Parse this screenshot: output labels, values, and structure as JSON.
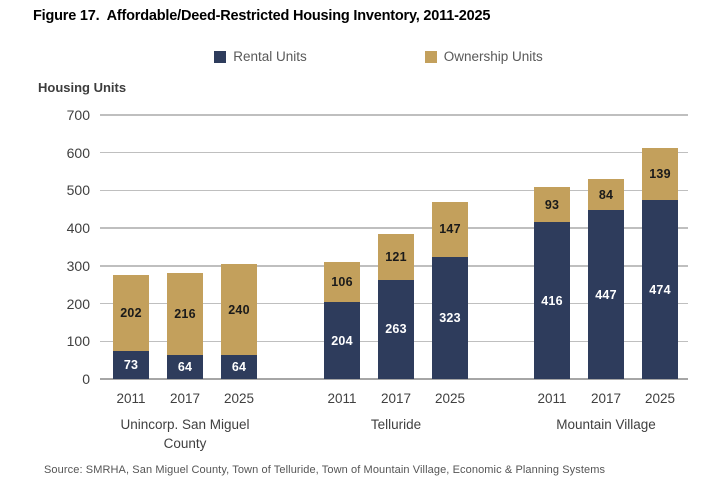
{
  "title": "Figure 17.  Affordable/Deed-Restricted Housing Inventory, 2011-2025",
  "legend": {
    "rental_label": "Rental Units",
    "ownership_label": "Ownership Units"
  },
  "y_axis_title": "Housing Units",
  "source": "Source: SMRHA, San Miguel County, Town of Telluride, Town of Mountain Village, Economic & Planning Systems",
  "colors": {
    "rental": "#2E3C5C",
    "ownership": "#C3A05C",
    "gridline": "#BFBFBF",
    "axis_line": "#A6A6A6",
    "tick_text": "#404040",
    "legend_text": "#595959",
    "source_text": "#555555",
    "title_text": "#000000",
    "bar_label_light": "#FFFFFF",
    "bar_label_dark": "#1A1A1A"
  },
  "chart_data": {
    "type": "bar",
    "stacked": true,
    "title": "Affordable/Deed-Restricted Housing Inventory, 2011-2025",
    "xlabel": "",
    "ylabel": "Housing Units",
    "ylim": [
      0,
      700
    ],
    "yticks": [
      0,
      100,
      200,
      300,
      400,
      500,
      600,
      700
    ],
    "grid": "horizontal",
    "legend_position": "top-center",
    "groups": [
      {
        "label": "Unincorp. San Miguel County",
        "label_lines": [
          "Unincorp. San Miguel",
          "County"
        ],
        "years": [
          "2011",
          "2017",
          "2025"
        ],
        "rental": [
          73,
          64,
          64
        ],
        "ownership": [
          202,
          216,
          240
        ]
      },
      {
        "label": "Telluride",
        "label_lines": [
          "Telluride"
        ],
        "years": [
          "2011",
          "2017",
          "2025"
        ],
        "rental": [
          204,
          263,
          323
        ],
        "ownership": [
          106,
          121,
          147
        ]
      },
      {
        "label": "Mountain Village",
        "label_lines": [
          "Mountain Village"
        ],
        "years": [
          "2011",
          "2017",
          "2025"
        ],
        "rental": [
          416,
          447,
          474
        ],
        "ownership": [
          93,
          84,
          139
        ]
      }
    ],
    "series": [
      {
        "name": "Rental Units",
        "color": "#2E3C5C",
        "values": [
          73,
          64,
          64,
          204,
          263,
          323,
          416,
          447,
          474
        ]
      },
      {
        "name": "Ownership Units",
        "color": "#C3A05C",
        "values": [
          202,
          216,
          240,
          106,
          121,
          147,
          93,
          84,
          139
        ]
      }
    ],
    "categories": [
      "2011",
      "2017",
      "2025",
      "2011",
      "2017",
      "2025",
      "2011",
      "2017",
      "2025"
    ]
  }
}
